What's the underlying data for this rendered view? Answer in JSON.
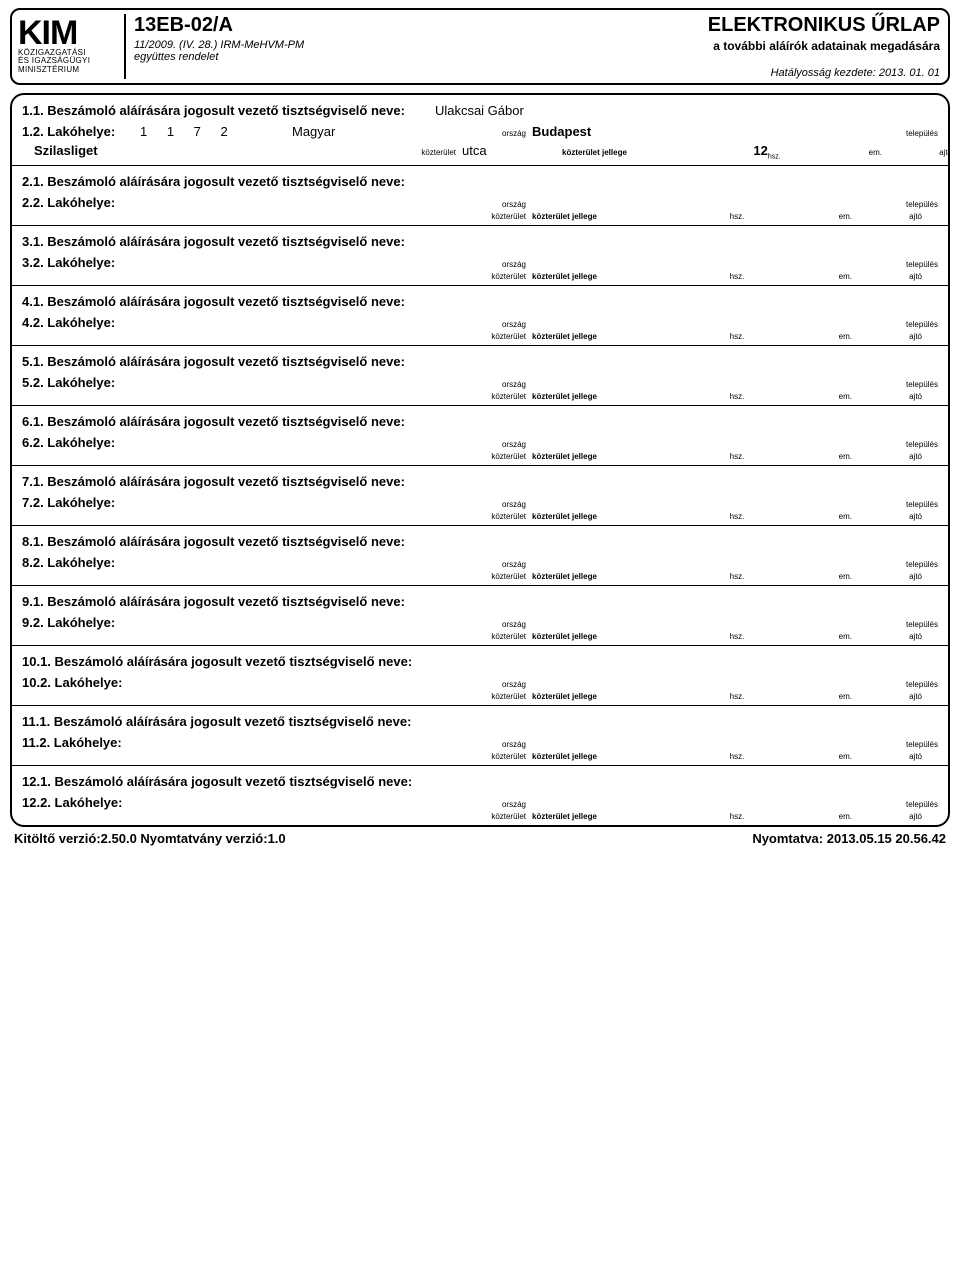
{
  "header": {
    "logo_main": "KIM",
    "logo_sub1": "KÖZIGAZGATÁSI",
    "logo_sub2": "ÉS IGAZSÁGÜGYI",
    "logo_sub3": "MINISZTÉRIUM",
    "form_code": "13EB-02/A",
    "ref_line1": "11/2009. (IV. 28.) IRM-MeHVM-PM",
    "ref_line2": "együttes rendelet",
    "title": "ELEKTRONIKUS ŰRLAP",
    "subtitle": "a további aláírók adatainak megadására",
    "validity": "Hatályosság kezdete: 2013. 01. 01"
  },
  "labels": {
    "name_prefix_suffix": " Beszámoló aláírására jogosult vezető tisztségviselő neve:",
    "address_label": " Lakóhelye:",
    "orszag": "ország",
    "telepules": "település",
    "kozterulet": "közterület",
    "kozterulet_jellege": "közterület jellege",
    "hsz": "hsz.",
    "em": "em.",
    "ajto": "ajtó"
  },
  "sections": [
    {
      "n": "1",
      "name": "Ulakcsai Gábor",
      "zip": "1 1 7 2",
      "country": "Magyar",
      "city": "Budapest",
      "street": "Szilasliget",
      "street_type": "utca",
      "hsz": "12"
    },
    {
      "n": "2"
    },
    {
      "n": "3"
    },
    {
      "n": "4"
    },
    {
      "n": "5"
    },
    {
      "n": "6"
    },
    {
      "n": "7"
    },
    {
      "n": "8"
    },
    {
      "n": "9"
    },
    {
      "n": "10"
    },
    {
      "n": "11"
    },
    {
      "n": "12"
    }
  ],
  "footer": {
    "left": "Kitöltő verzió:2.50.0  Nyomtatvány verzió:1.0",
    "right": "Nyomtatva: 2013.05.15 20.56.42"
  }
}
